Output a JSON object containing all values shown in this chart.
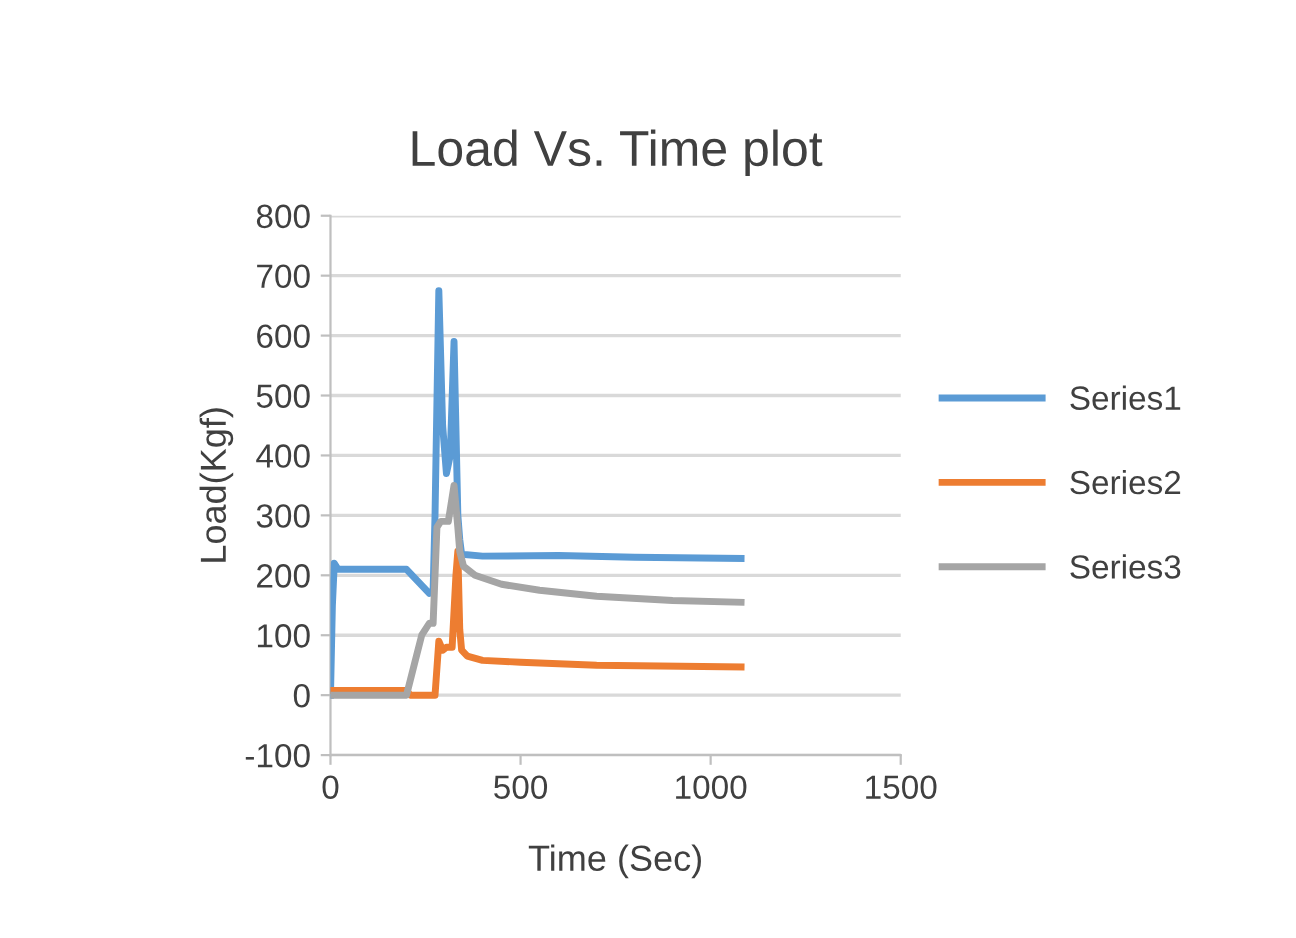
{
  "chart_data": {
    "type": "line",
    "title": "Load Vs. Time plot",
    "xlabel": "Time (Sec)",
    "ylabel": "Load(Kgf)",
    "xlim": [
      0,
      1500
    ],
    "xticks": [
      0,
      500,
      1000,
      1500
    ],
    "ylim": [
      -100,
      800
    ],
    "yticks": [
      -100,
      0,
      100,
      200,
      300,
      400,
      500,
      600,
      700,
      800
    ],
    "grid": "y",
    "legend": "right",
    "marker": "none",
    "line_style": "solid",
    "series": [
      {
        "name": "Series1",
        "color": "#5b9bd5",
        "x": [
          0,
          5,
          10,
          20,
          200,
          230,
          260,
          270,
          275,
          285,
          295,
          305,
          315,
          325,
          335,
          340,
          345,
          400,
          600,
          800,
          1080
        ],
        "values": [
          0,
          150,
          220,
          210,
          210,
          190,
          170,
          175,
          300,
          675,
          450,
          370,
          400,
          590,
          300,
          260,
          235,
          232,
          233,
          230,
          228
        ]
      },
      {
        "name": "Series2",
        "color": "#ed7d31",
        "x": [
          0,
          200,
          210,
          275,
          285,
          295,
          305,
          320,
          330,
          335,
          340,
          345,
          360,
          400,
          500,
          700,
          1080
        ],
        "values": [
          8,
          8,
          0,
          0,
          90,
          75,
          80,
          80,
          200,
          240,
          110,
          75,
          65,
          58,
          55,
          50,
          47
        ]
      },
      {
        "name": "Series3",
        "color": "#a5a5a5",
        "x": [
          0,
          200,
          220,
          240,
          260,
          270,
          280,
          290,
          310,
          325,
          335,
          340,
          350,
          380,
          450,
          550,
          700,
          900,
          1080
        ],
        "values": [
          0,
          0,
          50,
          100,
          120,
          120,
          280,
          290,
          290,
          350,
          280,
          240,
          215,
          200,
          185,
          175,
          165,
          158,
          155
        ]
      }
    ]
  }
}
